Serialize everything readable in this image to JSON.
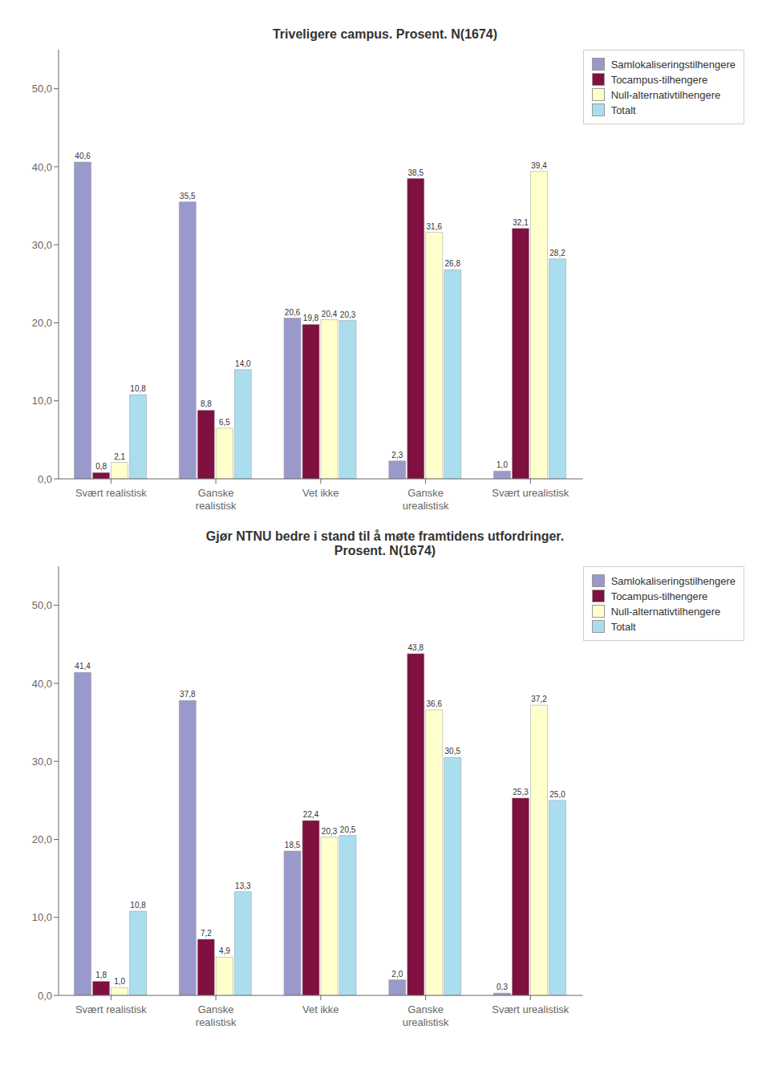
{
  "chart_data": [
    {
      "type": "bar",
      "title": "Triveligere campus. Prosent. N(1674)",
      "categories": [
        "Svært realistisk",
        "Ganske\nrealistisk",
        "Vet ikke",
        "Ganske\nurealistisk",
        "Svært urealistisk"
      ],
      "series": [
        {
          "name": "Samlokaliseringstilhengere",
          "color": "#9999cc",
          "values": [
            40.6,
            35.5,
            20.6,
            2.3,
            1.0
          ],
          "value_labels": [
            "40,6",
            "35,5",
            "20,6",
            "2,3",
            "1,0"
          ]
        },
        {
          "name": "Tocampus-tilhengere",
          "color": "#7f1040",
          "values": [
            0.8,
            8.8,
            19.8,
            38.5,
            32.1
          ],
          "value_labels": [
            "0,8",
            "8,8",
            "19,8",
            "38,5",
            "32,1"
          ]
        },
        {
          "name": "Null-alternativtilhengere",
          "color": "#ffffcc",
          "values": [
            2.1,
            6.5,
            20.4,
            31.6,
            39.4
          ],
          "value_labels": [
            "2,1",
            "6,5",
            "20,4",
            "31,6",
            "39,4"
          ]
        },
        {
          "name": "Totalt",
          "color": "#aaddee",
          "values": [
            10.8,
            14.0,
            20.3,
            26.8,
            28.2
          ],
          "value_labels": [
            "10,8",
            "14,0",
            "20,3",
            "26,8",
            "28,2"
          ]
        }
      ],
      "ylim": [
        0,
        55
      ],
      "yticks": [
        {
          "value": 0,
          "label": "0,0"
        },
        {
          "value": 10,
          "label": "10,0"
        },
        {
          "value": 20,
          "label": "20,0"
        },
        {
          "value": 30,
          "label": "30,0"
        },
        {
          "value": 40,
          "label": "40,0"
        },
        {
          "value": 50,
          "label": "50,0"
        }
      ],
      "grid": false,
      "legend": "upper right",
      "data_labels": true
    },
    {
      "type": "bar",
      "title": "Gjør NTNU bedre i stand til å møte framtidens utfordringer.\nProsent. N(1674)",
      "categories": [
        "Svært realistisk",
        "Ganske\nrealistisk",
        "Vet ikke",
        "Ganske\nurealistisk",
        "Svært urealistisk"
      ],
      "series": [
        {
          "name": "Samlokaliseringstilhengere",
          "color": "#9999cc",
          "values": [
            41.4,
            37.8,
            18.5,
            2.0,
            0.3
          ],
          "value_labels": [
            "41,4",
            "37,8",
            "18,5",
            "2,0",
            "0,3"
          ]
        },
        {
          "name": "Tocampus-tilhengere",
          "color": "#7f1040",
          "values": [
            1.8,
            7.2,
            22.4,
            43.8,
            25.3
          ],
          "value_labels": [
            "1,8",
            "7,2",
            "22,4",
            "43,8",
            "25,3"
          ]
        },
        {
          "name": "Null-alternativtilhengere",
          "color": "#ffffcc",
          "values": [
            1.0,
            4.9,
            20.3,
            36.6,
            37.2
          ],
          "value_labels": [
            "1,0",
            "4,9",
            "20,3",
            "36,6",
            "37,2"
          ]
        },
        {
          "name": "Totalt",
          "color": "#aaddee",
          "values": [
            10.8,
            13.3,
            20.5,
            30.5,
            25.0
          ],
          "value_labels": [
            "10,8",
            "13,3",
            "20,5",
            "30,5",
            "25,0"
          ]
        }
      ],
      "ylim": [
        0,
        55
      ],
      "yticks": [
        {
          "value": 0,
          "label": "0,0"
        },
        {
          "value": 10,
          "label": "10,0"
        },
        {
          "value": 20,
          "label": "20,0"
        },
        {
          "value": 30,
          "label": "30,0"
        },
        {
          "value": 40,
          "label": "40,0"
        },
        {
          "value": 50,
          "label": "50,0"
        }
      ],
      "grid": false,
      "legend": "upper right",
      "data_labels": true
    }
  ]
}
